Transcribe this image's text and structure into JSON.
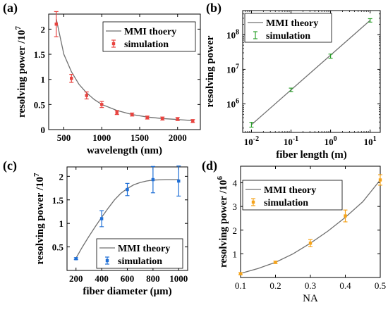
{
  "chart_data": [
    {
      "panel": "(a)",
      "type": "line",
      "xlabel": "wavelength (nm)",
      "ylabel": "resolving power /10",
      "ylabel_exp": "7",
      "xlim": [
        300,
        2300
      ],
      "ylim": [
        0,
        2.3
      ],
      "xticks": [
        500,
        1000,
        1500,
        2000
      ],
      "yticks": [
        0,
        0.5,
        1,
        1.5,
        2
      ],
      "ytick_labels": [
        "0",
        "0.5",
        "1",
        "1.5",
        "2"
      ],
      "log_x": false,
      "log_y": false,
      "legend": {
        "position": "top-right",
        "line_label": "MMI thoery",
        "marker_label": "simulation"
      },
      "colors": {
        "line": "#707070",
        "marker": "#e8433f"
      },
      "series": [
        {
          "name": "MMI thoery",
          "kind": "line",
          "x": [
            400,
            500,
            600,
            700,
            800,
            900,
            1000,
            1200,
            1400,
            1600,
            1800,
            2000,
            2200
          ],
          "y": [
            2.2,
            1.5,
            1.15,
            0.9,
            0.73,
            0.6,
            0.5,
            0.38,
            0.3,
            0.25,
            0.22,
            0.2,
            0.18
          ]
        },
        {
          "name": "simulation",
          "kind": "errorbar",
          "x": [
            400,
            600,
            800,
            1000,
            1200,
            1400,
            1600,
            1800,
            2000,
            2200
          ],
          "y": [
            2.1,
            1.02,
            0.68,
            0.5,
            0.34,
            0.3,
            0.24,
            0.22,
            0.21,
            0.17
          ],
          "err": [
            0.25,
            0.08,
            0.07,
            0.06,
            0.04,
            0.03,
            0.03,
            0.03,
            0.03,
            0.03
          ]
        }
      ]
    },
    {
      "panel": "(b)",
      "type": "line",
      "xlabel": "fiber length (m)",
      "ylabel": "resolving power",
      "ylabel_exp": "",
      "xlim": [
        0.006,
        18
      ],
      "ylim": [
        150000,
        500000000
      ],
      "xticks": [
        0.01,
        0.1,
        1,
        10
      ],
      "xtick_base": [
        "10",
        "10",
        "10",
        "10"
      ],
      "xtick_exp": [
        "-2",
        "-1",
        "0",
        "1"
      ],
      "yticks": [
        1000000,
        10000000,
        100000000
      ],
      "ytick_base": [
        "10",
        "10",
        "10"
      ],
      "ytick_exp": [
        "6",
        "7",
        "8"
      ],
      "log_x": true,
      "log_y": true,
      "legend": {
        "position": "top-left",
        "line_label": "MMI theory",
        "marker_label": "simulation"
      },
      "colors": {
        "line": "#707070",
        "marker": "#2ca02c"
      },
      "series": [
        {
          "name": "MMI theory",
          "kind": "line",
          "x": [
            0.01,
            10
          ],
          "y": [
            250000,
            260000000
          ]
        },
        {
          "name": "simulation",
          "kind": "errorbar",
          "x": [
            0.01,
            0.1,
            1,
            10
          ],
          "y": [
            250000,
            2550000,
            24000000,
            260000000
          ],
          "err_log": [
            0.07,
            0.05,
            0.06,
            0.05
          ]
        }
      ]
    },
    {
      "panel": "(c)",
      "type": "line",
      "xlabel": "fiber diameter (μm)",
      "ylabel": "resolving power /10",
      "ylabel_exp": "7",
      "xlim": [
        130,
        1070
      ],
      "ylim": [
        0,
        2.2
      ],
      "xticks": [
        200,
        400,
        600,
        800,
        1000
      ],
      "yticks": [
        0.5,
        1,
        1.5,
        2
      ],
      "ytick_labels": [
        "0.5",
        "1",
        "1.5",
        "2"
      ],
      "log_x": false,
      "log_y": false,
      "legend": {
        "position": "bottom-right",
        "line_label": "MMI theory",
        "marker_label": "simulation"
      },
      "colors": {
        "line": "#707070",
        "marker": "#1f6fd6"
      },
      "series": [
        {
          "name": "MMI theory",
          "kind": "line",
          "x": [
            200,
            250,
            300,
            350,
            400,
            450,
            500,
            550,
            600,
            650,
            700,
            750,
            800,
            900,
            1000
          ],
          "y": [
            0.26,
            0.5,
            0.72,
            0.93,
            1.13,
            1.32,
            1.5,
            1.64,
            1.74,
            1.82,
            1.87,
            1.9,
            1.92,
            1.93,
            1.93
          ]
        },
        {
          "name": "simulation",
          "kind": "errorbar",
          "x": [
            200,
            400,
            600,
            800,
            1000
          ],
          "y": [
            0.25,
            1.1,
            1.72,
            1.93,
            1.9
          ],
          "err": [
            0.02,
            0.17,
            0.13,
            0.28,
            0.32
          ]
        }
      ]
    },
    {
      "panel": "(d)",
      "type": "line",
      "xlabel": "NA",
      "ylabel": "resolving power /10",
      "ylabel_exp": "6",
      "xlim": [
        0.1,
        0.5
      ],
      "ylim": [
        0,
        4.7
      ],
      "xticks": [
        0.1,
        0.2,
        0.3,
        0.4,
        0.5
      ],
      "xtick_labels": [
        "0.1",
        "0.2",
        "0.3",
        "0.4",
        "0.5"
      ],
      "yticks": [
        1,
        2,
        3,
        4
      ],
      "ytick_labels": [
        "1",
        "2",
        "3",
        "4"
      ],
      "log_x": false,
      "log_y": false,
      "legend": {
        "position": "top-left",
        "line_label": "MMI theory",
        "marker_label": "simulation"
      },
      "colors": {
        "line": "#707070",
        "marker": "#f5a31a"
      },
      "series": [
        {
          "name": "MMI theory",
          "kind": "line",
          "x": [
            0.1,
            0.15,
            0.2,
            0.25,
            0.3,
            0.35,
            0.4,
            0.45,
            0.5
          ],
          "y": [
            0.17,
            0.38,
            0.64,
            1.0,
            1.45,
            1.96,
            2.54,
            3.2,
            4.12
          ]
        },
        {
          "name": "simulation",
          "kind": "errorbar",
          "x": [
            0.1,
            0.2,
            0.3,
            0.4,
            0.5
          ],
          "y": [
            0.16,
            0.64,
            1.45,
            2.6,
            4.12
          ],
          "err": [
            0.04,
            0.05,
            0.15,
            0.25,
            0.22
          ]
        }
      ]
    }
  ]
}
